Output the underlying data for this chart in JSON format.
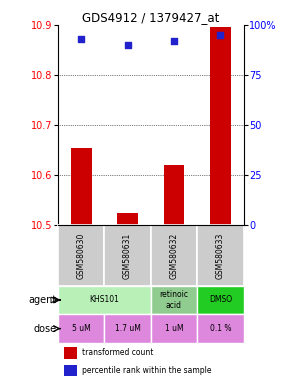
{
  "title": "GDS4912 / 1379427_at",
  "samples": [
    "GSM580630",
    "GSM580631",
    "GSM580632",
    "GSM580633"
  ],
  "bar_values": [
    10.655,
    10.525,
    10.62,
    10.895
  ],
  "bar_bottom": 10.5,
  "percentile_values": [
    93,
    90,
    92,
    95
  ],
  "left_ylim": [
    10.5,
    10.9
  ],
  "left_yticks": [
    10.5,
    10.6,
    10.7,
    10.8,
    10.9
  ],
  "right_ylim": [
    0,
    100
  ],
  "right_yticks": [
    0,
    25,
    50,
    75,
    100
  ],
  "right_yticklabels": [
    "0",
    "25",
    "50",
    "75",
    "100%"
  ],
  "bar_color": "#cc0000",
  "dot_color": "#2222cc",
  "agent_spans": [
    [
      0,
      2,
      "KHS101"
    ],
    [
      2,
      3,
      "retinoic\nacid"
    ],
    [
      3,
      4,
      "DMSO"
    ]
  ],
  "agent_colors": [
    "#b8f0b8",
    "#90cc90",
    "#22cc22"
  ],
  "dose_labels": [
    "5 uM",
    "1.7 uM",
    "1 uM",
    "0.1 %"
  ],
  "dose_color": "#dd88dd",
  "sample_bg": "#cccccc",
  "left_label_color": "red",
  "right_label_color": "blue"
}
